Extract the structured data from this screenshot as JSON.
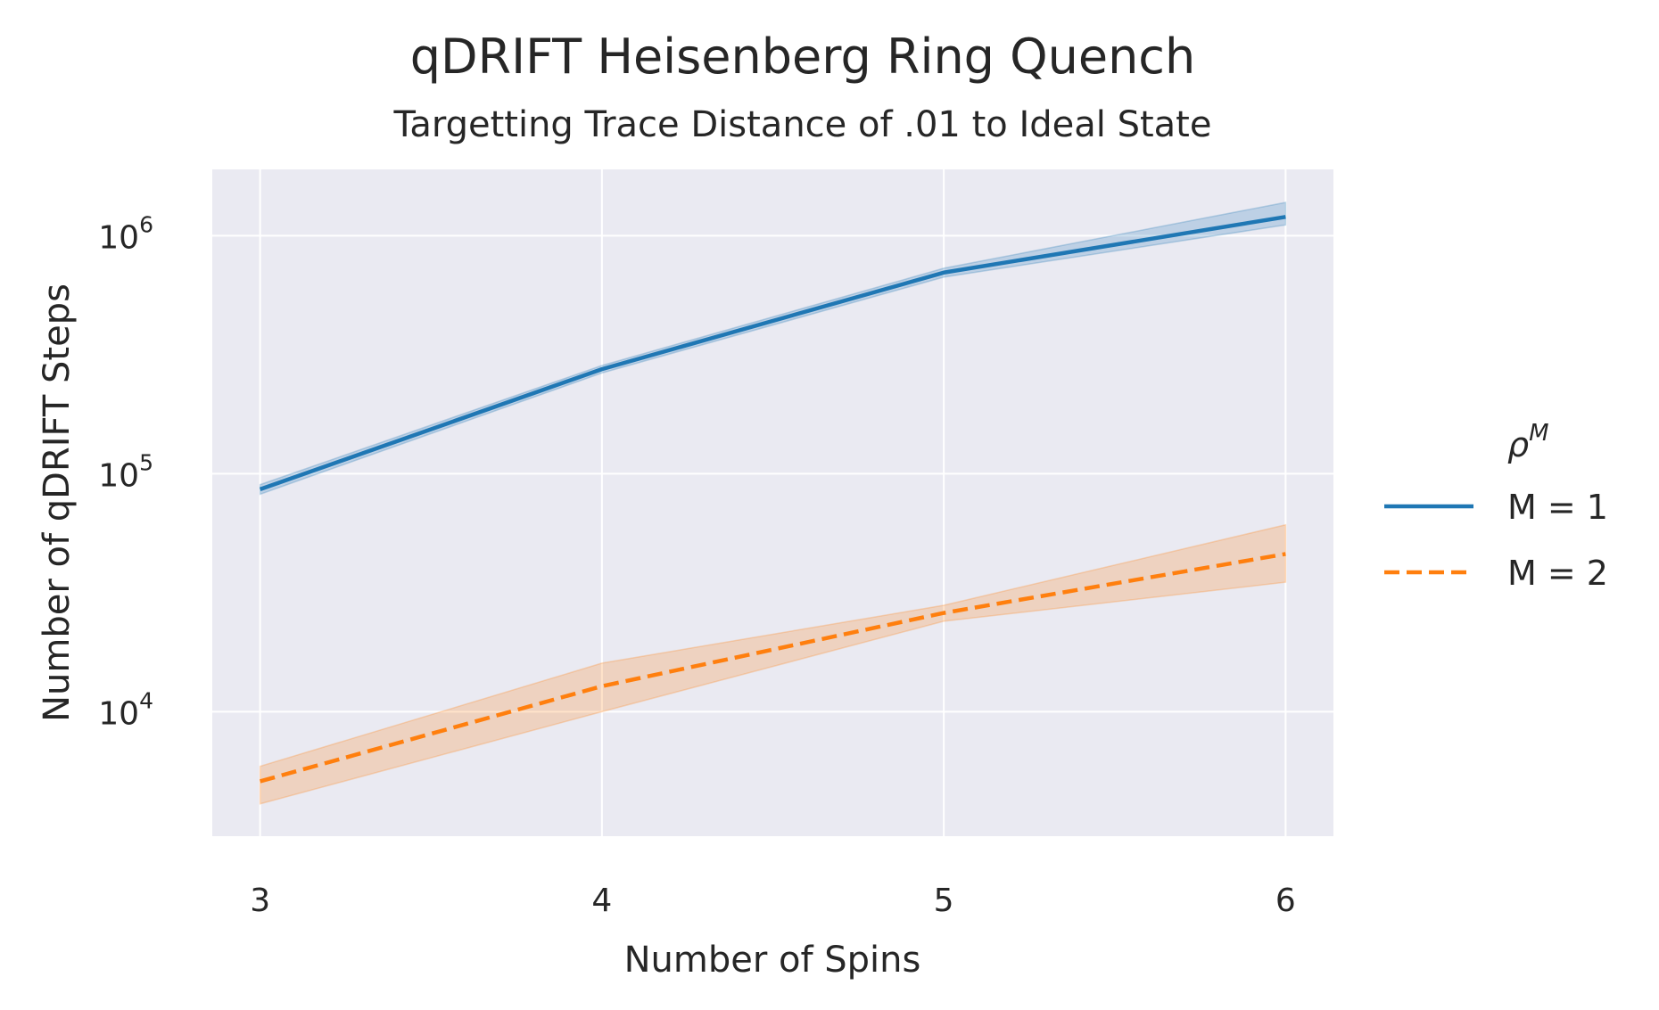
{
  "chart_data": {
    "type": "line",
    "title": "qDRIFT Heisenberg Ring Quench",
    "subtitle": "Targetting Trace Distance of .01 to Ideal State",
    "xlabel": "Number of Spins",
    "ylabel": "Number of qDRIFT Steps",
    "yscale": "log",
    "x": [
      3,
      4,
      5,
      6
    ],
    "x_ticks": [
      "3",
      "4",
      "5",
      "6"
    ],
    "xlim": [
      2.86,
      6.14
    ],
    "ylim": [
      3000,
      1900000
    ],
    "y_ticks": [
      {
        "value": 10000,
        "base": "10",
        "exp": "4"
      },
      {
        "value": 100000,
        "base": "10",
        "exp": "5"
      },
      {
        "value": 1000000,
        "base": "10",
        "exp": "6"
      }
    ],
    "grid": true,
    "legend": {
      "title": "ρ^M",
      "title_base": "ρ",
      "title_sup": "M",
      "placement": "right outside",
      "entries": [
        "M = 1",
        "M = 2"
      ]
    },
    "series": [
      {
        "name": "M = 1",
        "color": "#1f77b4",
        "dash": "solid",
        "values": [
          86000,
          275000,
          700000,
          1200000
        ],
        "ci_low": [
          82000,
          265000,
          670000,
          1110000
        ],
        "ci_high": [
          90000,
          285000,
          730000,
          1380000
        ]
      },
      {
        "name": "M = 2",
        "color": "#ff7f0e",
        "dash": "dashed",
        "values": [
          5100,
          12800,
          26000,
          46000
        ],
        "ci_low": [
          4100,
          10000,
          24000,
          35000
        ],
        "ci_high": [
          5900,
          16000,
          28000,
          61000
        ]
      }
    ],
    "colors": {
      "background": "#eaeaf2",
      "grid": "#ffffff"
    }
  }
}
